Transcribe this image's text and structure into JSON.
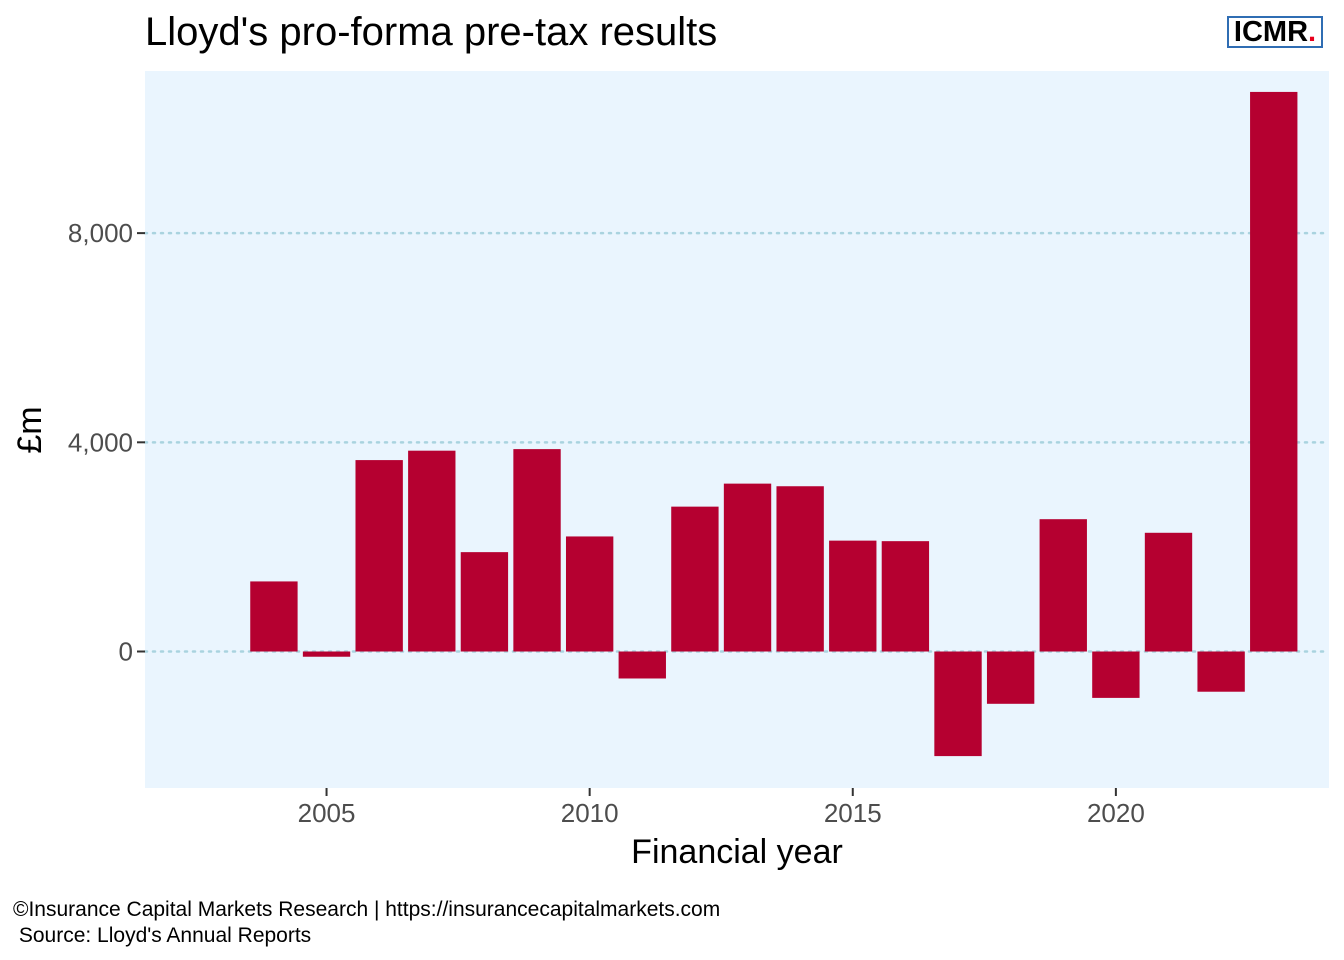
{
  "title": "Lloyd's pro-forma pre-tax results",
  "logo": {
    "text": "ICMR",
    "dot": ".",
    "border_color": "#2f6db3",
    "dot_color": "#e8001c"
  },
  "footer": {
    "line1": "©Insurance Capital Markets Research | https://insurancecapitalmarkets.com",
    "line2": " Source: Lloyd's Annual Reports"
  },
  "colors": {
    "bar": "#b50030",
    "panel": "#eaf5fe",
    "grid": "#a9d3df"
  },
  "chart_data": {
    "type": "bar",
    "title": "Lloyd's pro-forma pre-tax results",
    "xlabel": "Financial year",
    "ylabel": "£m",
    "x": [
      2004,
      2005,
      2006,
      2007,
      2008,
      2009,
      2010,
      2011,
      2012,
      2013,
      2014,
      2015,
      2016,
      2017,
      2018,
      2019,
      2020,
      2021,
      2022,
      2023
    ],
    "values": [
      1340,
      -100,
      3660,
      3840,
      1900,
      3870,
      2200,
      -516,
      2770,
      3210,
      3160,
      2120,
      2110,
      -2000,
      -1000,
      2530,
      -887,
      2270,
      -769,
      10700
    ],
    "xlim": [
      2001.55,
      2024.05
    ],
    "ylim": [
      -2610,
      11100
    ],
    "xticks": [
      2005,
      2010,
      2015,
      2020
    ],
    "xtick_labels": [
      "2005",
      "2010",
      "2015",
      "2020"
    ],
    "yticks": [
      0,
      4000,
      8000
    ],
    "ytick_labels": [
      "0",
      "4,000",
      "8,000"
    ],
    "grid": "horizontal dotted",
    "legend": "none"
  }
}
